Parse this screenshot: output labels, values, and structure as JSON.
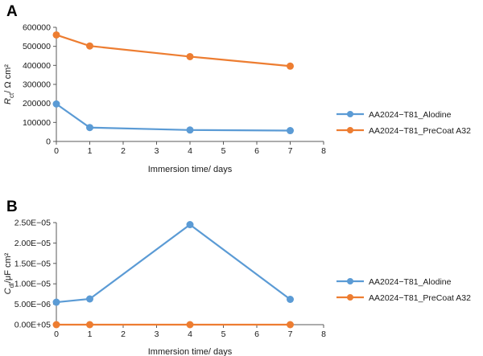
{
  "chart_data": [
    {
      "panel_label": "A",
      "type": "line",
      "ylabel_main": "R",
      "ylabel_sub": "ct",
      "ylabel_rest": "/ Ω cm²",
      "xlabel": "Immersion time/ days",
      "xlim": [
        0,
        8
      ],
      "ylim": [
        0,
        600000
      ],
      "xticks": [
        "0",
        "1",
        "2",
        "3",
        "4",
        "5",
        "6",
        "7",
        "8"
      ],
      "yticks": [
        "0",
        "100000",
        "200000",
        "300000",
        "400000",
        "500000",
        "600000"
      ],
      "legend_position": "right",
      "series": [
        {
          "name": "AA2024−T81_Alodine",
          "color": "#5b9bd5",
          "x": [
            0,
            1,
            4,
            7
          ],
          "y": [
            197000,
            73000,
            60000,
            57000
          ]
        },
        {
          "name": "AA2024−T81_PreCoat A32",
          "color": "#ed7d31",
          "x": [
            0,
            1,
            4,
            7
          ],
          "y": [
            560000,
            502000,
            446000,
            396000
          ]
        }
      ]
    },
    {
      "panel_label": "B",
      "type": "line",
      "ylabel_main": "C",
      "ylabel_sub": "dl",
      "ylabel_rest": "/μF cm²",
      "xlabel": "Immersion time/ days",
      "xlim": [
        0,
        8
      ],
      "ylim": [
        0,
        2.5e-05
      ],
      "xticks": [
        "0",
        "1",
        "2",
        "3",
        "4",
        "5",
        "6",
        "7",
        "8"
      ],
      "yticks": [
        "0.00E+05",
        "5.00E−06",
        "1.00E−05",
        "1.50E−05",
        "2.00E−05",
        "2.50E−05"
      ],
      "legend_position": "right",
      "series": [
        {
          "name": "AA2024−T81_Alodine",
          "color": "#5b9bd5",
          "x": [
            0,
            1,
            4,
            7
          ],
          "y": [
            5.5e-06,
            6.3e-06,
            2.45e-05,
            6.2e-06
          ]
        },
        {
          "name": "AA2024−T81_PreCoat A32",
          "color": "#ed7d31",
          "x": [
            0,
            1,
            4,
            7
          ],
          "y": [
            0,
            0,
            0,
            0
          ]
        }
      ]
    }
  ]
}
